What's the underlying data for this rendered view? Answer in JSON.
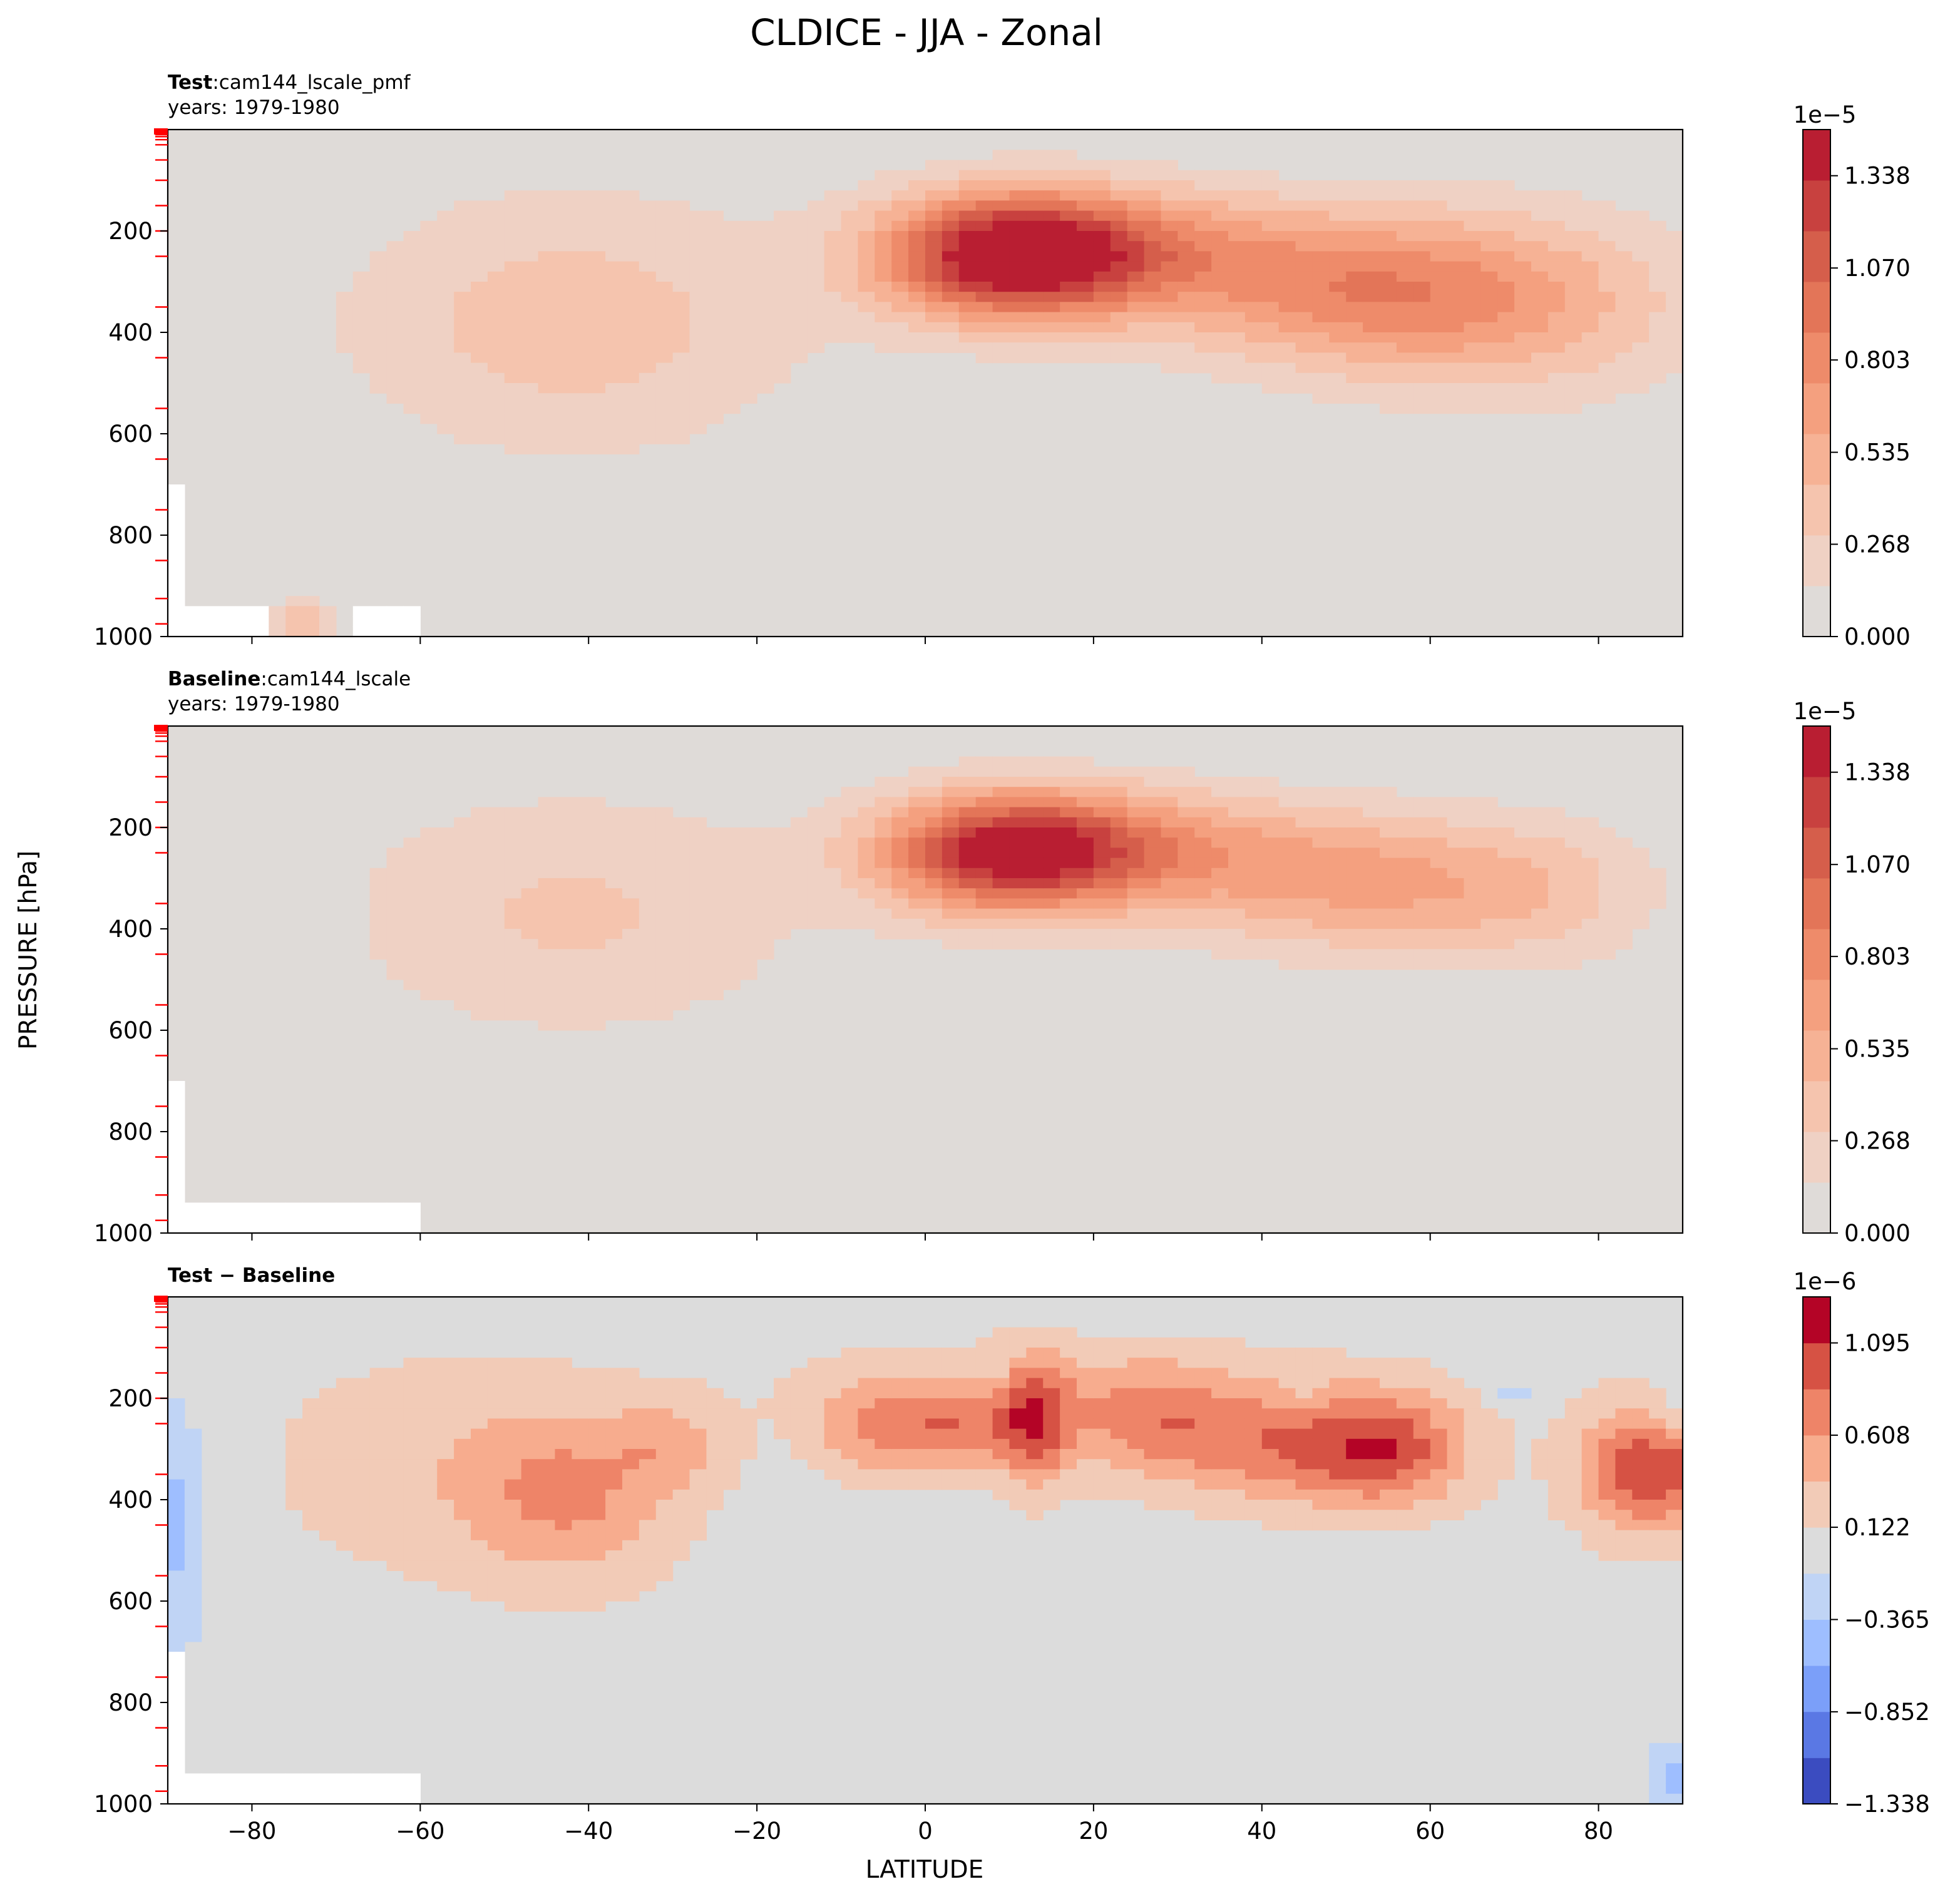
{
  "figure": {
    "title": "CLDICE - JJA - Zonal",
    "xlabel": "LATITUDE",
    "ylabel": "PRESSURE [hPa]"
  },
  "colors": {
    "seq": [
      "#dfdbd8",
      "#efd1c4",
      "#f5c4ae",
      "#f6b295",
      "#f4a07f",
      "#ee8b6a",
      "#e37558",
      "#d55e4b",
      "#c8413f",
      "#b91e32"
    ],
    "div": [
      "#3b4cc0",
      "#5a78e4",
      "#7b9ff9",
      "#9ebeff",
      "#c0d4f5",
      "#dcdcdc",
      "#f2cbb7",
      "#f7ac8e",
      "#ee8468",
      "#d65244",
      "#b40426"
    ],
    "tick_marks": "#ff0000"
  },
  "chart_data": [
    {
      "type": "heatmap",
      "subtitle_bold": "Test",
      "subtitle_sep": ":",
      "subtitle": "cam144_lscale_pmf",
      "years_label": "years: 1979-1980",
      "x_range": [
        -90,
        90
      ],
      "y_range": [
        1000,
        0
      ],
      "yticks": [
        "200",
        "400",
        "600",
        "800",
        "1000"
      ],
      "colorbar": {
        "scale_label": "1e−5",
        "ticks": [
          "0.000",
          "0.268",
          "0.535",
          "0.803",
          "1.070",
          "1.338"
        ],
        "range": [
          0.0,
          1.472
        ]
      },
      "features": [
        {
          "lat": 10,
          "p": 250,
          "sx": 11,
          "sy": 90,
          "amp": 1.4
        },
        {
          "lat": 25,
          "p": 230,
          "sx": 15,
          "sy": 85,
          "amp": 0.5
        },
        {
          "lat": 53,
          "p": 320,
          "sx": 18,
          "sy": 110,
          "amp": 0.72
        },
        {
          "lat": 72,
          "p": 360,
          "sx": 16,
          "sy": 150,
          "amp": 0.28
        },
        {
          "lat": -42,
          "p": 380,
          "sx": 20,
          "sy": 190,
          "amp": 0.38
        },
        {
          "lat": -74,
          "p": 1000,
          "sx": 2.5,
          "sy": 60,
          "amp": 0.45
        }
      ],
      "mask": "test"
    },
    {
      "type": "heatmap",
      "subtitle_bold": "Baseline",
      "subtitle_sep": ":",
      "subtitle": "cam144_lscale",
      "years_label": "years: 1979-1980",
      "x_range": [
        -90,
        90
      ],
      "y_range": [
        1000,
        0
      ],
      "yticks": [
        "200",
        "400",
        "600",
        "800",
        "1000"
      ],
      "colorbar": {
        "scale_label": "1e−5",
        "ticks": [
          "0.000",
          "0.268",
          "0.535",
          "0.803",
          "1.070",
          "1.338"
        ],
        "range": [
          0.0,
          1.472
        ]
      },
      "features": [
        {
          "lat": 10,
          "p": 250,
          "sx": 11,
          "sy": 85,
          "amp": 1.36
        },
        {
          "lat": 27,
          "p": 230,
          "sx": 14,
          "sy": 80,
          "amp": 0.42
        },
        {
          "lat": 52,
          "p": 310,
          "sx": 17,
          "sy": 100,
          "amp": 0.6
        },
        {
          "lat": 74,
          "p": 340,
          "sx": 10,
          "sy": 110,
          "amp": 0.2
        },
        {
          "lat": -42,
          "p": 370,
          "sx": 20,
          "sy": 180,
          "amp": 0.32
        }
      ],
      "mask": "baseline"
    },
    {
      "type": "heatmap",
      "subtitle_bold": "Test − Baseline",
      "subtitle_sep": "",
      "subtitle": "",
      "years_label": "",
      "x_range": [
        -90,
        90
      ],
      "y_range": [
        1000,
        0
      ],
      "xticks": [
        "−80",
        "−60",
        "−40",
        "−20",
        "0",
        "20",
        "40",
        "60",
        "80"
      ],
      "xtick_values": [
        -80,
        -60,
        -40,
        -20,
        0,
        20,
        40,
        60,
        80
      ],
      "yticks": [
        "200",
        "400",
        "600",
        "800",
        "1000"
      ],
      "colorbar": {
        "scale_label": "1e−6",
        "ticks": [
          "−1.338",
          "−0.852",
          "−0.365",
          "0.122",
          "0.608",
          "1.095"
        ],
        "range": [
          -1.338,
          1.338
        ]
      },
      "features": [
        {
          "lat": -5,
          "p": 260,
          "sx": 6,
          "sy": 70,
          "amp": 0.62
        },
        {
          "lat": 5,
          "p": 260,
          "sx": 5,
          "sy": 60,
          "amp": 0.55
        },
        {
          "lat": 13,
          "p": 250,
          "sx": 3,
          "sy": 90,
          "amp": 0.8
        },
        {
          "lat": 27,
          "p": 250,
          "sx": 8,
          "sy": 80,
          "amp": 0.65
        },
        {
          "lat": 42,
          "p": 300,
          "sx": 8,
          "sy": 80,
          "amp": 0.6
        },
        {
          "lat": 55,
          "p": 300,
          "sx": 7,
          "sy": 80,
          "amp": 0.95
        },
        {
          "lat": 86,
          "p": 340,
          "sx": 6,
          "sy": 90,
          "amp": 1.05
        },
        {
          "lat": -42,
          "p": 390,
          "sx": 9,
          "sy": 120,
          "amp": 0.6
        },
        {
          "lat": -30,
          "p": 290,
          "sx": 5,
          "sy": 60,
          "amp": 0.35
        },
        {
          "lat": -60,
          "p": 330,
          "sx": 14,
          "sy": 160,
          "amp": 0.25
        },
        {
          "lat": 15,
          "p": 170,
          "sx": 25,
          "sy": 70,
          "amp": 0.2
        },
        {
          "lat": -89,
          "p": 450,
          "sx": 2.5,
          "sy": 160,
          "amp": -0.45
        },
        {
          "lat": 89,
          "p": 950,
          "sx": 2.5,
          "sy": 50,
          "amp": -0.4
        },
        {
          "lat": 89,
          "p": 220,
          "sx": 2,
          "sy": 40,
          "amp": -0.3
        },
        {
          "lat": 70,
          "p": 190,
          "sx": 2,
          "sy": 15,
          "amp": -0.25
        },
        {
          "lat": 45,
          "p": 185,
          "sx": 1.5,
          "sy": 15,
          "amp": -0.2
        },
        {
          "lat": 8,
          "p": 140,
          "sx": 1.5,
          "sy": 15,
          "amp": -0.2
        }
      ],
      "mask": "baseline"
    }
  ]
}
